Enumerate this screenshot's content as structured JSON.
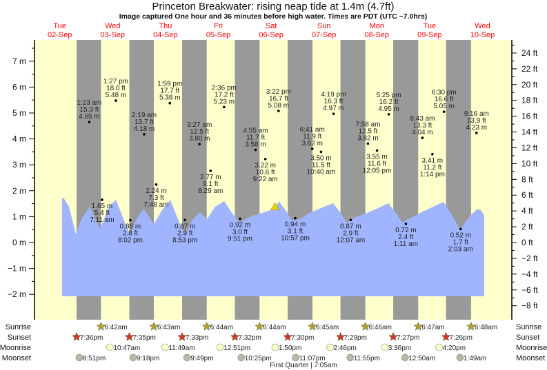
{
  "title": "Princeton Breakwater: rising  neap tide at 1.4m (4.7ft)",
  "subtitle": "Image captured One hour and 36 minutes before high water. Times are PDT (UTC −7.0hrs)",
  "colors": {
    "day": "#ffffcc",
    "night": "#999999",
    "water": "#a0b4ff",
    "day_label": "#ff0000",
    "now_marker": "#e8d800",
    "sunrise": "#b0a030",
    "sunset": "#d03828",
    "moonrise": "#ffffcc",
    "moonset": "#b8b8a8"
  },
  "chart_data": {
    "type": "area",
    "title": "Princeton Breakwater: rising  neap tide at 1.4m (4.7ft)",
    "days": [
      {
        "weekday": "Tue",
        "date": "02-Sep"
      },
      {
        "weekday": "Wed",
        "date": "03-Sep"
      },
      {
        "weekday": "Thu",
        "date": "04-Sep"
      },
      {
        "weekday": "Fri",
        "date": "05-Sep"
      },
      {
        "weekday": "Sat",
        "date": "06-Sep"
      },
      {
        "weekday": "Sun",
        "date": "07-Sep"
      },
      {
        "weekday": "Mon",
        "date": "08-Sep"
      },
      {
        "weekday": "Tue",
        "date": "09-Sep"
      },
      {
        "weekday": "Wed",
        "date": "10-Sep"
      }
    ],
    "y_left": {
      "unit": "m",
      "range": [
        -2,
        7
      ],
      "ticks": [
        "−2 m",
        "−1 m",
        "0 m",
        "1 m",
        "2 m",
        "3 m",
        "4 m",
        "5 m",
        "6 m",
        "7 m"
      ]
    },
    "y_right": {
      "unit": "ft",
      "ticks": [
        "−8 ft",
        "−6 ft",
        "−4 ft",
        "−2 ft",
        "0 ft",
        "2 ft",
        "4 ft",
        "6 ft",
        "8 ft",
        "10 ft",
        "12 ft",
        "14 ft",
        "16 ft",
        "18 ft",
        "20 ft",
        "22 ft",
        "24 ft"
      ]
    },
    "now": {
      "date": "06-Sep",
      "time": "1:45 pm",
      "m": 1.4
    },
    "tides": [
      {
        "date": "03-Sep",
        "time": "1:23 am",
        "ft": "15.3 ft",
        "m": "4.65 m",
        "type": "high"
      },
      {
        "date": "03-Sep",
        "time": "7:11 am",
        "ft": "5.4 ft",
        "m": "1.65 m",
        "type": "low"
      },
      {
        "date": "03-Sep",
        "time": "1:27 pm",
        "ft": "18.0 ft",
        "m": "5.48 m",
        "type": "high"
      },
      {
        "date": "03-Sep",
        "time": "8:02 pm",
        "ft": "2.8 ft",
        "m": "0.86 m",
        "type": "low"
      },
      {
        "date": "04-Sep",
        "time": "2:19 am",
        "ft": "13.7 ft",
        "m": "4.18 m",
        "type": "high"
      },
      {
        "date": "04-Sep",
        "time": "7:48 am",
        "ft": "7.3 ft",
        "m": "2.24 m",
        "type": "low"
      },
      {
        "date": "04-Sep",
        "time": "1:59 pm",
        "ft": "17.7 ft",
        "m": "5.38 m",
        "type": "high"
      },
      {
        "date": "04-Sep",
        "time": "8:53 pm",
        "ft": "2.9 ft",
        "m": "0.87 m",
        "type": "low"
      },
      {
        "date": "05-Sep",
        "time": "3:27 am",
        "ft": "12.5 ft",
        "m": "3.80 m",
        "type": "high"
      },
      {
        "date": "05-Sep",
        "time": "8:29 am",
        "ft": "9.1 ft",
        "m": "2.77 m",
        "type": "low"
      },
      {
        "date": "05-Sep",
        "time": "2:36 pm",
        "ft": "17.2 ft",
        "m": "5.23 m",
        "type": "high"
      },
      {
        "date": "05-Sep",
        "time": "9:51 pm",
        "ft": "3.0 ft",
        "m": "0.92 m",
        "type": "low"
      },
      {
        "date": "06-Sep",
        "time": "4:55 am",
        "ft": "11.7 ft",
        "m": "3.58 m",
        "type": "high"
      },
      {
        "date": "06-Sep",
        "time": "9:22 am",
        "ft": "10.6 ft",
        "m": "3.22 m",
        "type": "low"
      },
      {
        "date": "06-Sep",
        "time": "3:22 pm",
        "ft": "16.7 ft",
        "m": "5.08 m",
        "type": "high"
      },
      {
        "date": "06-Sep",
        "time": "10:57 pm",
        "ft": "3.1 ft",
        "m": "0.94 m",
        "type": "low"
      },
      {
        "date": "07-Sep",
        "time": "6:41 am",
        "ft": "11.9 ft",
        "m": "3.62 m",
        "type": "high"
      },
      {
        "date": "07-Sep",
        "time": "10:40 am",
        "ft": "11.5 ft",
        "m": "3.50 m",
        "type": "low"
      },
      {
        "date": "07-Sep",
        "time": "4:19 pm",
        "ft": "16.3 ft",
        "m": "4.97 m",
        "type": "high"
      },
      {
        "date": "08-Sep",
        "time": "12:07 am",
        "ft": "2.9 ft",
        "m": "0.87 m",
        "type": "low"
      },
      {
        "date": "08-Sep",
        "time": "7:58 am",
        "ft": "12.5 ft",
        "m": "3.82 m",
        "type": "high"
      },
      {
        "date": "08-Sep",
        "time": "12:05 pm",
        "ft": "11.6 ft",
        "m": "3.55 m",
        "type": "low"
      },
      {
        "date": "08-Sep",
        "time": "5:25 pm",
        "ft": "16.2 ft",
        "m": "4.95 m",
        "type": "high"
      },
      {
        "date": "09-Sep",
        "time": "1:11 am",
        "ft": "2.4 ft",
        "m": "0.72 m",
        "type": "low"
      },
      {
        "date": "09-Sep",
        "time": "8:43 am",
        "ft": "13.3 ft",
        "m": "4.04 m",
        "type": "high"
      },
      {
        "date": "09-Sep",
        "time": "1:14 pm",
        "ft": "11.2 ft",
        "m": "3.41 m",
        "type": "low"
      },
      {
        "date": "09-Sep",
        "time": "6:30 pm",
        "ft": "16.6 ft",
        "m": "5.05 m",
        "type": "high"
      },
      {
        "date": "10-Sep",
        "time": "2:03 am",
        "ft": "1.7 ft",
        "m": "0.52 m",
        "type": "low"
      },
      {
        "date": "10-Sep",
        "time": "9:16 am",
        "ft": "13.9 ft",
        "m": "4.23 m",
        "type": "high"
      }
    ]
  },
  "astro": {
    "rows": [
      {
        "label": "Sunrise",
        "icon": "sunrise-star-icon",
        "events": [
          {
            "date": "03-Sep",
            "time": "6:42am"
          },
          {
            "date": "04-Sep",
            "time": "6:43am"
          },
          {
            "date": "05-Sep",
            "time": "6:44am"
          },
          {
            "date": "06-Sep",
            "time": "6:44am"
          },
          {
            "date": "07-Sep",
            "time": "6:45am"
          },
          {
            "date": "08-Sep",
            "time": "6:46am"
          },
          {
            "date": "09-Sep",
            "time": "6:47am"
          },
          {
            "date": "10-Sep",
            "time": "6:48am"
          }
        ]
      },
      {
        "label": "Sunset",
        "icon": "sunset-star-icon",
        "events": [
          {
            "date": "02-Sep",
            "time": "7:36pm"
          },
          {
            "date": "03-Sep",
            "time": "7:35pm"
          },
          {
            "date": "04-Sep",
            "time": "7:33pm"
          },
          {
            "date": "05-Sep",
            "time": "7:32pm"
          },
          {
            "date": "06-Sep",
            "time": "7:30pm"
          },
          {
            "date": "07-Sep",
            "time": "7:29pm"
          },
          {
            "date": "08-Sep",
            "time": "7:27pm"
          },
          {
            "date": "09-Sep",
            "time": "7:26pm"
          }
        ]
      },
      {
        "label": "Moonrise",
        "icon": "moonrise-circle-icon",
        "events": [
          {
            "date": "03-Sep",
            "time": "10:47am"
          },
          {
            "date": "04-Sep",
            "time": "11:49am"
          },
          {
            "date": "05-Sep",
            "time": "12:51pm"
          },
          {
            "date": "06-Sep",
            "time": "1:50pm"
          },
          {
            "date": "07-Sep",
            "time": "2:46pm"
          },
          {
            "date": "08-Sep",
            "time": "3:36pm"
          },
          {
            "date": "09-Sep",
            "time": "4:20pm"
          }
        ]
      },
      {
        "label": "Moonset",
        "icon": "moonset-circle-icon",
        "events": [
          {
            "date": "02-Sep",
            "time": "8:51pm"
          },
          {
            "date": "03-Sep",
            "time": "9:18pm"
          },
          {
            "date": "04-Sep",
            "time": "9:49pm"
          },
          {
            "date": "05-Sep",
            "time": "10:25pm"
          },
          {
            "date": "06-Sep",
            "time": "11:07pm"
          },
          {
            "date": "07-Sep",
            "time": "11:55pm"
          },
          {
            "date": "09-Sep",
            "time": "12:50am"
          },
          {
            "date": "10-Sep",
            "time": "1:49am"
          }
        ]
      }
    ],
    "moon_phase": "First Quarter | 7:05am"
  }
}
